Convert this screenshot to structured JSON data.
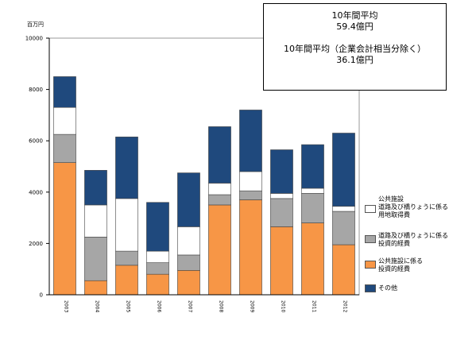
{
  "unit_label": "百万円",
  "note": {
    "line1": "10年間平均",
    "line2": "59.4億円",
    "line3": "10年間平均（企業会計相当分除く）",
    "line4": "36.1億円"
  },
  "chart_data": {
    "type": "bar",
    "stacked": true,
    "categories": [
      "2003",
      "2004",
      "2005",
      "2006",
      "2007",
      "2008",
      "2009",
      "2010",
      "2011",
      "2012"
    ],
    "ylim": [
      0,
      10000
    ],
    "yticks": [
      0,
      2000,
      4000,
      6000,
      8000,
      10000
    ],
    "series": [
      {
        "name": "公共施設に係る\n投資的経費",
        "color": "#f79646",
        "values": [
          5150,
          550,
          1150,
          800,
          950,
          3500,
          3700,
          2650,
          2800,
          1950
        ]
      },
      {
        "name": "道路及び橋りょうに係る\n投資的経費",
        "color": "#a6a6a6",
        "values": [
          1100,
          1700,
          550,
          450,
          600,
          400,
          350,
          1100,
          1150,
          1300
        ]
      },
      {
        "name": "公共施設\n道路及び橋りょうに係る\n用地取得費",
        "color": "#ffffff",
        "values": [
          1050,
          1250,
          2050,
          450,
          1100,
          450,
          750,
          200,
          200,
          200
        ]
      },
      {
        "name": "その他",
        "color": "#1f497d",
        "values": [
          1200,
          1350,
          2400,
          1900,
          2100,
          2200,
          2400,
          1700,
          1700,
          2850
        ]
      }
    ],
    "legend_position": "right"
  }
}
